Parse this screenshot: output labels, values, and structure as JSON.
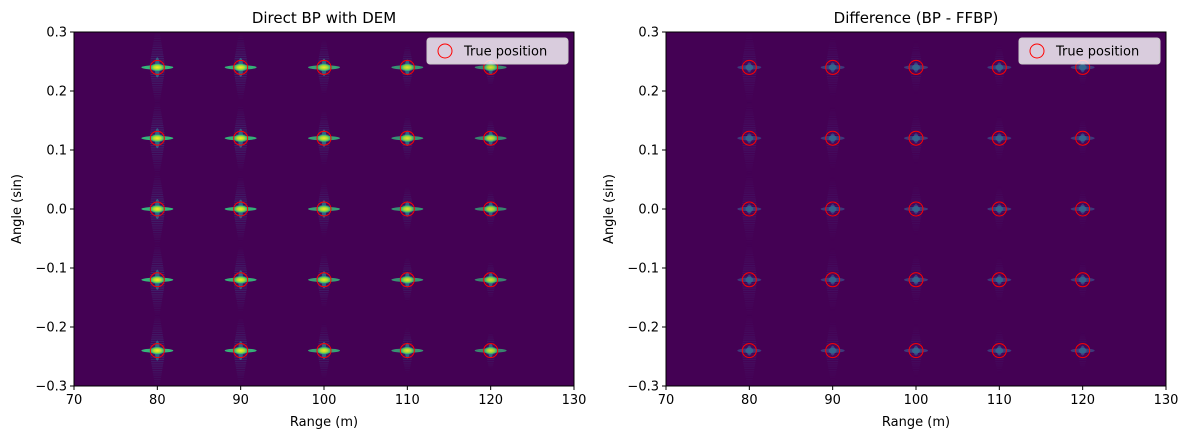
{
  "figure": {
    "chart_data": [
      {
        "type": "heatmap",
        "title": "Direct BP with DEM",
        "xlabel": "Range (m)",
        "ylabel": "Angle (sin)",
        "xlim": [
          70,
          130
        ],
        "ylim": [
          -0.3,
          0.3
        ],
        "x_ticks": [
          "70",
          "80",
          "90",
          "100",
          "110",
          "120",
          "130"
        ],
        "y_ticks": [
          "0.3",
          "0.2",
          "0.1",
          "0.0",
          "−0.1",
          "−0.2",
          "−0.3"
        ],
        "colormap": "viridis",
        "background_color": "#440154",
        "grid": false,
        "legend": {
          "placement": "top-right",
          "entries": [
            "True position"
          ]
        },
        "true_position_series": {
          "name": "True position",
          "marker": "hollow circle",
          "color": "#ff0000",
          "x": [
            80,
            90,
            100,
            110,
            120
          ],
          "y": [
            0.24,
            0.12,
            0.0,
            -0.12,
            -0.24
          ]
        },
        "targets": {
          "x": [
            80,
            90,
            100,
            110,
            120
          ],
          "y": [
            0.24,
            0.12,
            0.0,
            -0.12,
            -0.24
          ],
          "peak_intensity_by_range": [
            1.0,
            0.95,
            0.85,
            0.75,
            0.65
          ],
          "angular_spread_by_range": [
            1.0,
            0.85,
            0.65,
            0.45,
            0.25
          ]
        }
      },
      {
        "type": "heatmap",
        "title": "Difference (BP - FFBP)",
        "xlabel": "Range (m)",
        "ylabel": "Angle (sin)",
        "xlim": [
          70,
          130
        ],
        "ylim": [
          -0.3,
          0.3
        ],
        "x_ticks": [
          "70",
          "80",
          "90",
          "100",
          "110",
          "120",
          "130"
        ],
        "y_ticks": [
          "0.3",
          "0.2",
          "0.1",
          "0.0",
          "−0.1",
          "−0.2",
          "−0.3"
        ],
        "colormap": "viridis",
        "background_color": "#440154",
        "grid": false,
        "legend": {
          "placement": "top-right",
          "entries": [
            "True position"
          ]
        },
        "true_position_series": {
          "name": "True position",
          "marker": "hollow circle",
          "color": "#ff0000",
          "x": [
            80,
            90,
            100,
            110,
            120
          ],
          "y": [
            0.24,
            0.12,
            0.0,
            -0.12,
            -0.24
          ]
        },
        "targets": {
          "x": [
            80,
            90,
            100,
            110,
            120
          ],
          "y": [
            0.24,
            0.12,
            0.0,
            -0.12,
            -0.24
          ],
          "peak_intensity_by_range": [
            0.25,
            0.2,
            0.15,
            0.12,
            0.08
          ],
          "angular_spread_by_range": [
            1.0,
            0.8,
            0.6,
            0.45,
            0.3
          ]
        }
      }
    ]
  }
}
